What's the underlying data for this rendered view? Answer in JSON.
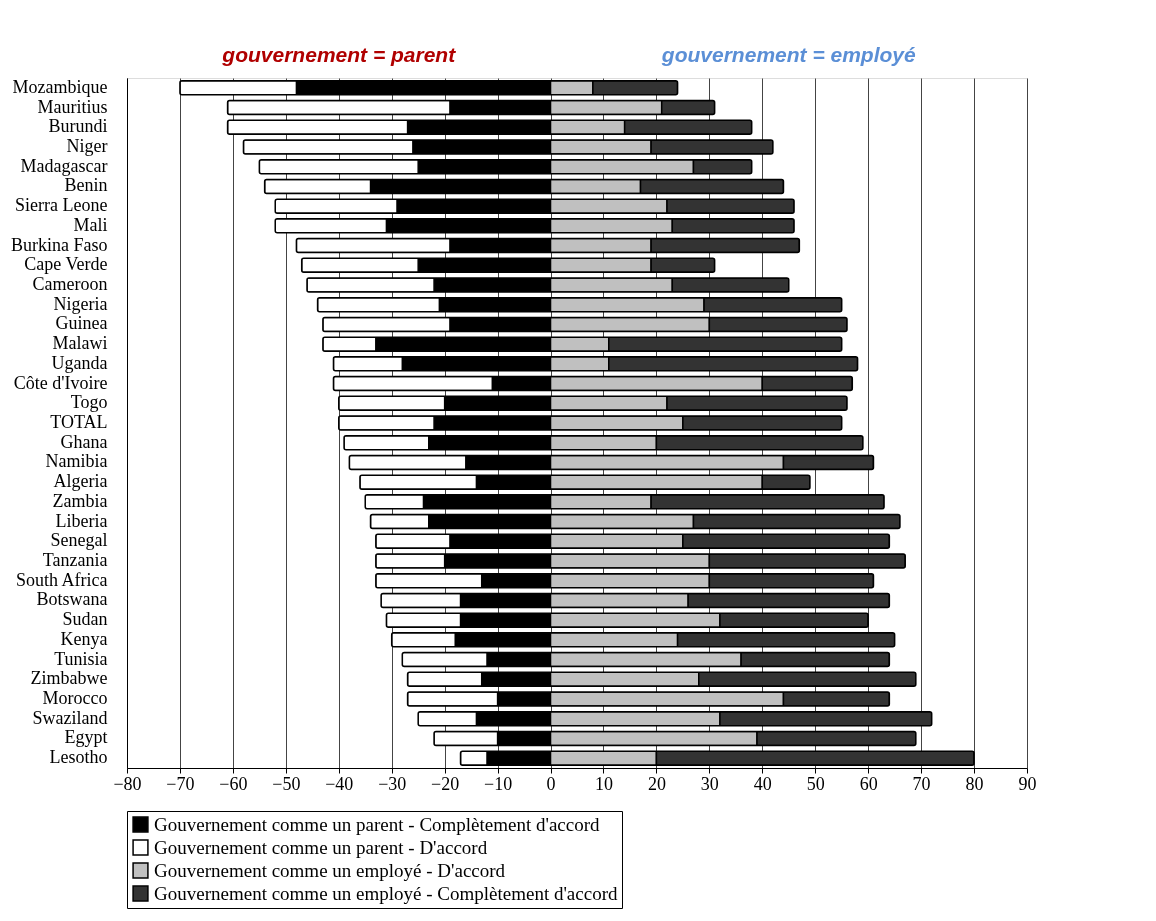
{
  "chart_data": {
    "type": "bar",
    "orientation": "horizontal",
    "stacked": true,
    "annotations": [
      "gouvernement = parent",
      "gouvernement = employé"
    ],
    "categories": [
      "Mozambique",
      "Mauritius",
      "Burundi",
      "Niger",
      "Madagascar",
      "Benin",
      "Sierra Leone",
      "Mali",
      "Burkina Faso",
      "Cape Verde",
      "Cameroon",
      "Nigeria",
      "Guinea",
      "Malawi",
      "Uganda",
      "Côte d'Ivoire",
      "Togo",
      "TOTAL",
      "Ghana",
      "Namibia",
      "Algeria",
      "Zambia",
      "Liberia",
      "Senegal",
      "Tanzania",
      "South Africa",
      "Botswana",
      "Sudan",
      "Kenya",
      "Tunisia",
      "Zimbabwe",
      "Morocco",
      "Swaziland",
      "Egypt",
      "Lesotho"
    ],
    "series": [
      {
        "name": "Gouvernement comme un parent - Complètement d'accord",
        "color": "#000000",
        "values": [
          -48,
          -19,
          -27,
          -26,
          -25,
          -34,
          -29,
          -31,
          -19,
          -25,
          -22,
          -21,
          -19,
          -33,
          -28,
          -11,
          -20,
          -22,
          -23,
          -16,
          -14,
          -24,
          -23,
          -19,
          -20,
          -13,
          -17,
          -17,
          -18,
          -12,
          -13,
          -10,
          -14,
          -10,
          -12
        ]
      },
      {
        "name": "Gouvernement comme un parent - D'accord",
        "color": "#ffffff",
        "values": [
          -22,
          -42,
          -34,
          -32,
          -30,
          -20,
          -23,
          -21,
          -29,
          -22,
          -24,
          -23,
          -24,
          -10,
          -13,
          -30,
          -20,
          -18,
          -16,
          -22,
          -22,
          -11,
          -11,
          -14,
          -13,
          -20,
          -15,
          -14,
          -12,
          -16,
          -14,
          -17,
          -11,
          -12,
          -5
        ]
      },
      {
        "name": "Gouvernement comme un employé - D'accord",
        "color": "#c0c0c0",
        "values": [
          8,
          21,
          14,
          19,
          27,
          17,
          22,
          23,
          19,
          19,
          23,
          29,
          30,
          11,
          11,
          40,
          22,
          25,
          20,
          44,
          40,
          19,
          27,
          25,
          30,
          30,
          26,
          32,
          24,
          36,
          28,
          44,
          32,
          39,
          20
        ]
      },
      {
        "name": "Gouvernement comme un employé - Complètement d'accord",
        "color": "#333333",
        "values": [
          16,
          10,
          24,
          23,
          11,
          27,
          24,
          23,
          28,
          12,
          22,
          26,
          26,
          44,
          47,
          17,
          34,
          30,
          39,
          17,
          9,
          44,
          39,
          39,
          37,
          31,
          38,
          28,
          41,
          28,
          41,
          20,
          40,
          30,
          60
        ]
      }
    ],
    "xlim": [
      -80,
      90
    ],
    "xticks": [
      -80,
      -70,
      -60,
      -50,
      -40,
      -30,
      -20,
      -10,
      0,
      10,
      20,
      30,
      40,
      50,
      60,
      70,
      80,
      90
    ],
    "grid": "x",
    "legend": "bottom"
  }
}
